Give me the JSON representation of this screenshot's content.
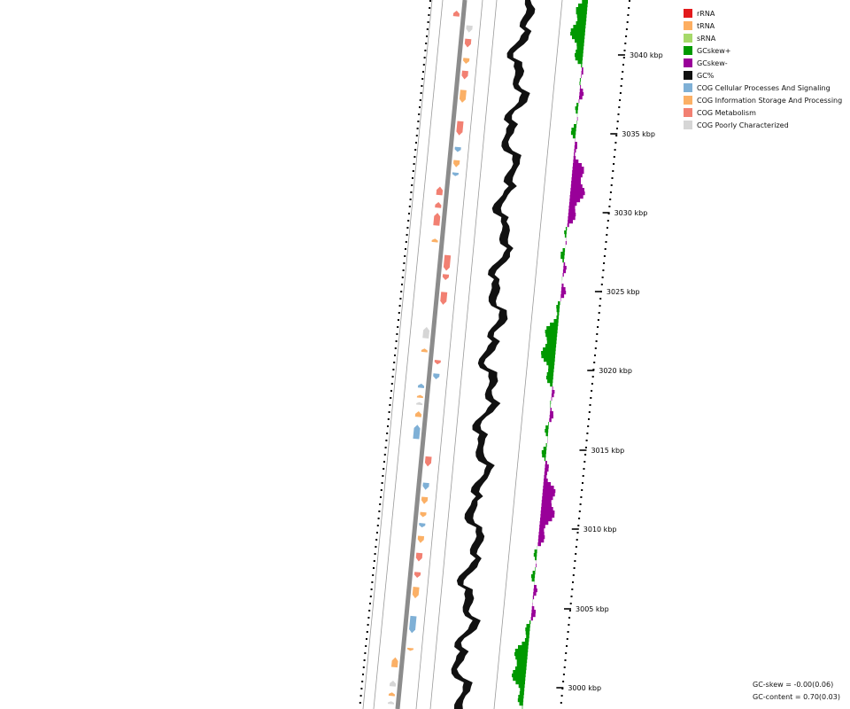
{
  "legend": [
    {
      "label": "rRNA",
      "color": "#e31a1c"
    },
    {
      "label": "tRNA",
      "color": "#fdae61"
    },
    {
      "label": "sRNA",
      "color": "#a6d96a"
    },
    {
      "label": "GCskew+",
      "color": "#009900"
    },
    {
      "label": "GCskew-",
      "color": "#990099"
    },
    {
      "label": "GC%",
      "color": "#111111"
    },
    {
      "label": "COG Cellular Processes And Signaling",
      "color": "#7fb0d6"
    },
    {
      "label": "COG Information Storage And Processing",
      "color": "#fbb066"
    },
    {
      "label": "COG Metabolism",
      "color": "#f28072"
    },
    {
      "label": "COG Poorly Characterized",
      "color": "#d6d6d6"
    }
  ],
  "stats": {
    "gc_skew": "GC-skew = -0.00(0.06)",
    "gc_content": "GC-content = 0.70(0.03)"
  },
  "axis": {
    "unit": "kbp",
    "tick_labels": [
      "3000 kbp",
      "3005 kbp",
      "3010 kbp",
      "3015 kbp",
      "3020 kbp",
      "3025 kbp",
      "3030 kbp",
      "3035 kbp",
      "3040 kbp"
    ]
  },
  "features": [
    {
      "t": 0.02,
      "cat": "COG Metabolism",
      "strand": -1,
      "len": 0.008
    },
    {
      "t": 0.04,
      "cat": "COG Poorly Characterized",
      "strand": 1,
      "len": 0.01
    },
    {
      "t": 0.06,
      "cat": "COG Metabolism",
      "strand": 1,
      "len": 0.012
    },
    {
      "t": 0.085,
      "cat": "COG Information Storage And Processing",
      "strand": 1,
      "len": 0.008
    },
    {
      "t": 0.105,
      "cat": "COG Metabolism",
      "strand": 1,
      "len": 0.012
    },
    {
      "t": 0.135,
      "cat": "COG Information Storage And Processing",
      "strand": 1,
      "len": 0.018
    },
    {
      "t": 0.18,
      "cat": "COG Metabolism",
      "strand": 1,
      "len": 0.02
    },
    {
      "t": 0.21,
      "cat": "COG Cellular Processes And Signaling",
      "strand": 1,
      "len": 0.007
    },
    {
      "t": 0.23,
      "cat": "COG Information Storage And Processing",
      "strand": 1,
      "len": 0.01
    },
    {
      "t": 0.245,
      "cat": "COG Cellular Processes And Signaling",
      "strand": 1,
      "len": 0.005
    },
    {
      "t": 0.27,
      "cat": "COG Metabolism",
      "strand": -1,
      "len": 0.012
    },
    {
      "t": 0.29,
      "cat": "COG Metabolism",
      "strand": -1,
      "len": 0.008
    },
    {
      "t": 0.31,
      "cat": "COG Metabolism",
      "strand": -1,
      "len": 0.018
    },
    {
      "t": 0.34,
      "cat": "COG Information Storage And Processing",
      "strand": -1,
      "len": 0.005
    },
    {
      "t": 0.37,
      "cat": "COG Metabolism",
      "strand": 1,
      "len": 0.022
    },
    {
      "t": 0.39,
      "cat": "COG Metabolism",
      "strand": 1,
      "len": 0.008
    },
    {
      "t": 0.42,
      "cat": "COG Metabolism",
      "strand": 1,
      "len": 0.018
    },
    {
      "t": 0.47,
      "cat": "COG Poorly Characterized",
      "strand": -1,
      "len": 0.016
    },
    {
      "t": 0.495,
      "cat": "COG Information Storage And Processing",
      "strand": -1,
      "len": 0.005
    },
    {
      "t": 0.51,
      "cat": "COG Metabolism",
      "strand": 1,
      "len": 0.006
    },
    {
      "t": 0.53,
      "cat": "COG Cellular Processes And Signaling",
      "strand": 1,
      "len": 0.008
    },
    {
      "t": 0.545,
      "cat": "COG Cellular Processes And Signaling",
      "strand": -1,
      "len": 0.006
    },
    {
      "t": 0.56,
      "cat": "COG Information Storage And Processing",
      "strand": -1,
      "len": 0.004
    },
    {
      "t": 0.57,
      "cat": "COG Poorly Characterized",
      "strand": -1,
      "len": 0.004
    },
    {
      "t": 0.585,
      "cat": "COG Information Storage And Processing",
      "strand": -1,
      "len": 0.008
    },
    {
      "t": 0.61,
      "cat": "COG Cellular Processes And Signaling",
      "strand": -1,
      "len": 0.02
    },
    {
      "t": 0.65,
      "cat": "COG Metabolism",
      "strand": 1,
      "len": 0.014
    },
    {
      "t": 0.685,
      "cat": "COG Cellular Processes And Signaling",
      "strand": 1,
      "len": 0.01
    },
    {
      "t": 0.705,
      "cat": "COG Information Storage And Processing",
      "strand": 1,
      "len": 0.01
    },
    {
      "t": 0.725,
      "cat": "COG Information Storage And Processing",
      "strand": 1,
      "len": 0.007
    },
    {
      "t": 0.74,
      "cat": "COG Cellular Processes And Signaling",
      "strand": 1,
      "len": 0.006
    },
    {
      "t": 0.76,
      "cat": "COG Information Storage And Processing",
      "strand": 1,
      "len": 0.01
    },
    {
      "t": 0.785,
      "cat": "COG Metabolism",
      "strand": 1,
      "len": 0.012
    },
    {
      "t": 0.81,
      "cat": "COG Metabolism",
      "strand": 1,
      "len": 0.008
    },
    {
      "t": 0.835,
      "cat": "COG Information Storage And Processing",
      "strand": 1,
      "len": 0.016
    },
    {
      "t": 0.88,
      "cat": "COG Cellular Processes And Signaling",
      "strand": 1,
      "len": 0.024
    },
    {
      "t": 0.915,
      "cat": "COG Information Storage And Processing",
      "strand": 1,
      "len": 0.004
    },
    {
      "t": 0.935,
      "cat": "COG Information Storage And Processing",
      "strand": -1,
      "len": 0.014
    },
    {
      "t": 0.965,
      "cat": "COG Poorly Characterized",
      "strand": -1,
      "len": 0.008
    },
    {
      "t": 0.98,
      "cat": "COG Information Storage And Processing",
      "strand": -1,
      "len": 0.005
    },
    {
      "t": 0.992,
      "cat": "COG Poorly Characterized",
      "strand": -1,
      "len": 0.004
    }
  ]
}
